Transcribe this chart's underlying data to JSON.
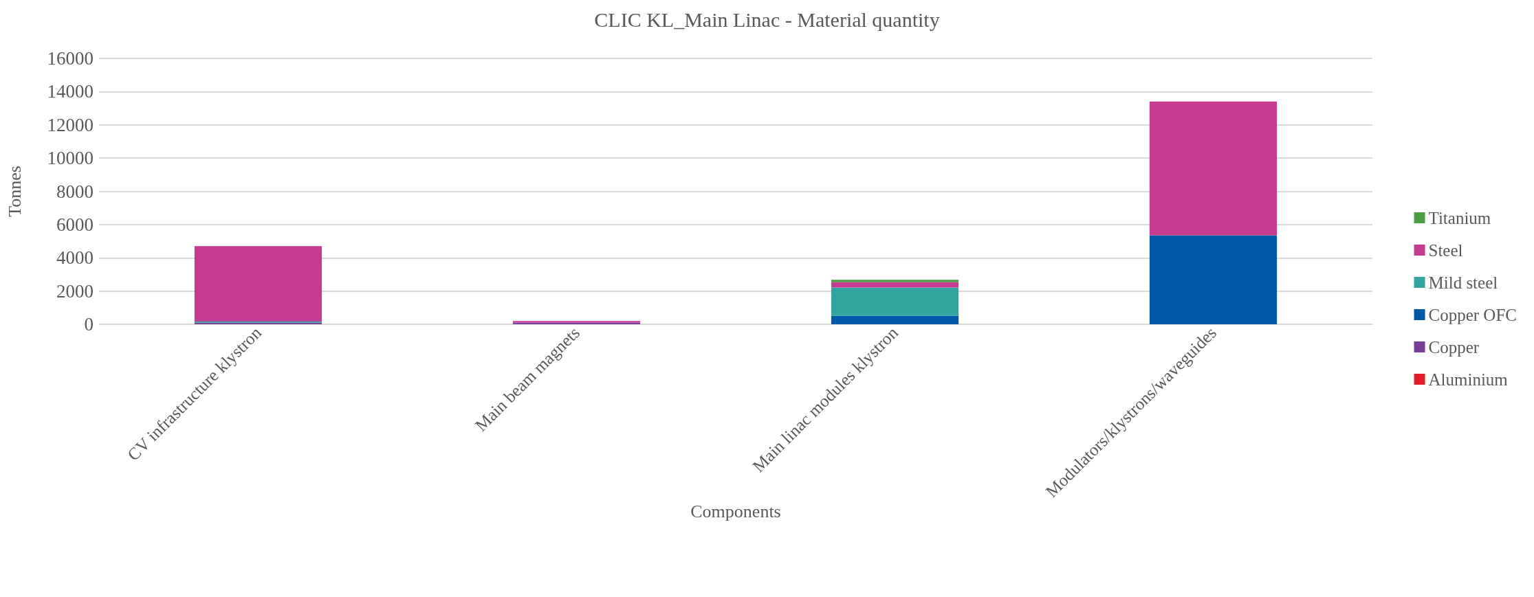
{
  "chart_data": {
    "type": "bar",
    "title": "CLIC KL_Main Linac - Material quantity",
    "xlabel": "Components",
    "ylabel": "Tonnes",
    "categories": [
      "CV infrastructure klystron",
      "Main beam magnets",
      "Main linac modules klystron",
      "Modulators/klystrons/waveguides"
    ],
    "stacked": true,
    "ylim": [
      0,
      16000
    ],
    "yticks": [
      0,
      2000,
      4000,
      6000,
      8000,
      10000,
      12000,
      14000,
      16000
    ],
    "grid": "y",
    "legend": "right",
    "series": [
      {
        "name": "Aluminium",
        "color": "#e41e26",
        "values": [
          0,
          0,
          0,
          0
        ]
      },
      {
        "name": "Copper",
        "color": "#7b3f98",
        "values": [
          90,
          100,
          0,
          0
        ]
      },
      {
        "name": "Copper OFC",
        "color": "#0058a8",
        "values": [
          0,
          0,
          510,
          5350
        ]
      },
      {
        "name": "Mild steel",
        "color": "#31a59f",
        "values": [
          80,
          0,
          1700,
          0
        ]
      },
      {
        "name": "Steel",
        "color": "#c73c93",
        "values": [
          4530,
          100,
          320,
          8060
        ]
      },
      {
        "name": "Titanium",
        "color": "#4c9e45",
        "values": [
          0,
          0,
          150,
          0
        ]
      }
    ]
  }
}
